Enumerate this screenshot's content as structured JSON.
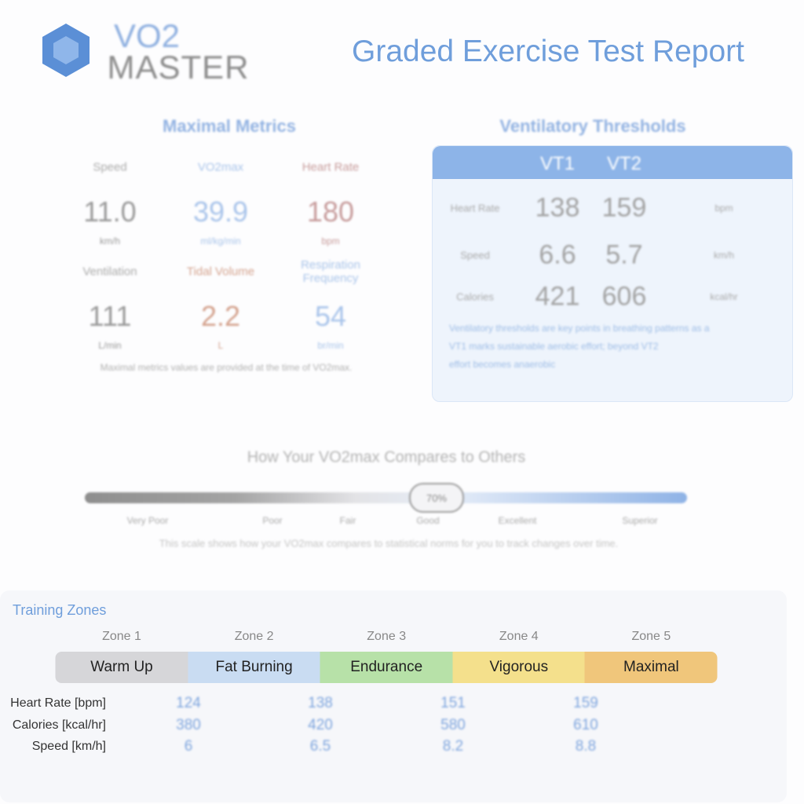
{
  "header": {
    "logo_top": "VO2",
    "logo_bottom": "MASTER",
    "title": "Graded Exercise Test Report"
  },
  "maximal_metrics": {
    "title": "Maximal Metrics",
    "items": [
      {
        "label": "Speed",
        "value": "11.0",
        "unit": "km/h"
      },
      {
        "label": "VO2max",
        "value": "39.9",
        "unit": "ml/kg/min"
      },
      {
        "label": "Heart Rate",
        "value": "180",
        "unit": "bpm"
      },
      {
        "label": "Ventilation",
        "value": "111",
        "unit": "L/min"
      },
      {
        "label": "Tidal Volume",
        "value": "2.2",
        "unit": "L"
      },
      {
        "label": "Respiration Frequency",
        "value": "54",
        "unit": "br/min"
      }
    ],
    "note": "Maximal metrics values are provided at the time of VO2max."
  },
  "ventilatory_thresholds": {
    "title": "Ventilatory Thresholds",
    "columns": [
      "VT1",
      "VT2"
    ],
    "rows": [
      {
        "label": "Heart Rate",
        "values": [
          "138",
          "159"
        ],
        "unit": "bpm"
      },
      {
        "label": "Speed",
        "values": [
          "6.6",
          "5.7"
        ],
        "unit": "km/h"
      },
      {
        "label": "Calories",
        "values": [
          "421",
          "606"
        ],
        "unit": "kcal/hr"
      }
    ],
    "notes": [
      "Ventilatory thresholds are key points in breathing patterns as a",
      "VT1 marks sustainable aerobic effort; beyond VT2",
      "effort becomes anaerobic"
    ]
  },
  "comparison": {
    "title": "How Your VO2max Compares to Others",
    "marker": "70%",
    "levels": [
      "Very Poor",
      "Poor",
      "Fair",
      "Good",
      "Excellent",
      "Superior"
    ],
    "note": "This scale shows how your VO2max compares to statistical norms for you to track changes over time."
  },
  "training_zones": {
    "title": "Training Zones",
    "zones": [
      {
        "label": "Zone 1",
        "name": "Warm Up"
      },
      {
        "label": "Zone 2",
        "name": "Fat Burning"
      },
      {
        "label": "Zone 3",
        "name": "Endurance"
      },
      {
        "label": "Zone 4",
        "name": "Vigorous"
      },
      {
        "label": "Zone 5",
        "name": "Maximal"
      }
    ],
    "rows": [
      {
        "label": "Heart Rate [bpm]",
        "values": [
          "124",
          "138",
          "151",
          "159"
        ]
      },
      {
        "label": "Calories [kcal/hr]",
        "values": [
          "380",
          "420",
          "580",
          "610"
        ]
      },
      {
        "label": "Speed [km/h]",
        "values": [
          "6",
          "6.5",
          "8.2",
          "8.8"
        ]
      }
    ]
  }
}
